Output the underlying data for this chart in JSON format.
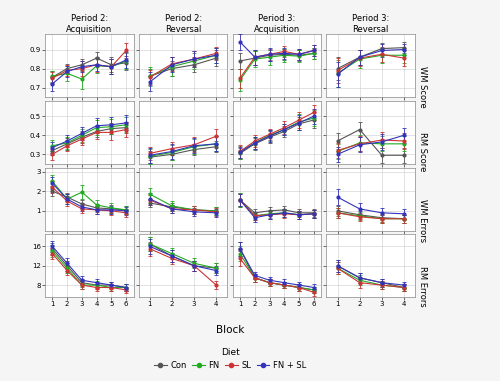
{
  "col_titles": [
    "Period 2:\nAcquisition",
    "Period 2:\nReversal",
    "Period 3:\nAcquisition",
    "Period 3:\nReversal"
  ],
  "row_titles": [
    "WM Score",
    "RM Score",
    "WM Errors",
    "RM Errors"
  ],
  "col_blocks": [
    6,
    4,
    6,
    4
  ],
  "colors": [
    "#555555",
    "#22aa22",
    "#cc3333",
    "#3333bb"
  ],
  "wm_score": {
    "p2acq": {
      "Con": {
        "y": [
          0.755,
          0.8,
          0.82,
          0.855,
          0.82,
          0.83
        ],
        "err": [
          0.03,
          0.025,
          0.03,
          0.03,
          0.04,
          0.035
        ]
      },
      "FN": {
        "y": [
          0.76,
          0.775,
          0.745,
          0.815,
          0.81,
          0.84
        ],
        "err": [
          0.03,
          0.04,
          0.05,
          0.04,
          0.04,
          0.04
        ]
      },
      "SL": {
        "y": [
          0.75,
          0.79,
          0.8,
          0.82,
          0.81,
          0.895
        ],
        "err": [
          0.03,
          0.03,
          0.04,
          0.04,
          0.04,
          0.04
        ]
      },
      "FN+SL": {
        "y": [
          0.72,
          0.785,
          0.81,
          0.82,
          0.81,
          0.845
        ],
        "err": [
          0.035,
          0.03,
          0.03,
          0.035,
          0.04,
          0.04
        ]
      }
    },
    "p2rev": {
      "Con": {
        "y": [
          0.76,
          0.8,
          0.82,
          0.855
        ],
        "err": [
          0.04,
          0.04,
          0.04,
          0.04
        ]
      },
      "FN": {
        "y": [
          0.76,
          0.81,
          0.84,
          0.87
        ],
        "err": [
          0.05,
          0.05,
          0.04,
          0.04
        ]
      },
      "SL": {
        "y": [
          0.755,
          0.825,
          0.85,
          0.88
        ],
        "err": [
          0.04,
          0.035,
          0.04,
          0.035
        ]
      },
      "FN+SL": {
        "y": [
          0.73,
          0.82,
          0.85,
          0.87
        ],
        "err": [
          0.05,
          0.04,
          0.04,
          0.04
        ]
      }
    },
    "p3acq": {
      "Con": {
        "y": [
          0.84,
          0.855,
          0.87,
          0.875,
          0.87,
          0.88
        ],
        "err": [
          0.04,
          0.035,
          0.03,
          0.03,
          0.03,
          0.03
        ]
      },
      "FN": {
        "y": [
          0.74,
          0.85,
          0.86,
          0.87,
          0.865,
          0.88
        ],
        "err": [
          0.06,
          0.04,
          0.04,
          0.035,
          0.03,
          0.03
        ]
      },
      "SL": {
        "y": [
          0.75,
          0.86,
          0.875,
          0.89,
          0.875,
          0.895
        ],
        "err": [
          0.05,
          0.04,
          0.03,
          0.03,
          0.03,
          0.03
        ]
      },
      "FN+SL": {
        "y": [
          0.94,
          0.86,
          0.875,
          0.88,
          0.875,
          0.895
        ],
        "err": [
          0.04,
          0.04,
          0.035,
          0.03,
          0.03,
          0.03
        ]
      }
    },
    "p3rev": {
      "Con": {
        "y": [
          0.8,
          0.86,
          0.905,
          0.91
        ],
        "err": [
          0.06,
          0.04,
          0.03,
          0.03
        ]
      },
      "FN": {
        "y": [
          0.775,
          0.85,
          0.87,
          0.87
        ],
        "err": [
          0.07,
          0.045,
          0.04,
          0.04
        ]
      },
      "SL": {
        "y": [
          0.79,
          0.855,
          0.875,
          0.855
        ],
        "err": [
          0.065,
          0.04,
          0.04,
          0.04
        ]
      },
      "FN+SL": {
        "y": [
          0.77,
          0.86,
          0.895,
          0.9
        ],
        "err": [
          0.065,
          0.04,
          0.035,
          0.03
        ]
      }
    }
  },
  "rm_score": {
    "p2acq": {
      "Con": {
        "y": [
          0.32,
          0.355,
          0.39,
          0.42,
          0.435,
          0.44
        ],
        "err": [
          0.025,
          0.03,
          0.03,
          0.03,
          0.03,
          0.03
        ]
      },
      "FN": {
        "y": [
          0.345,
          0.36,
          0.4,
          0.44,
          0.445,
          0.455
        ],
        "err": [
          0.03,
          0.03,
          0.035,
          0.04,
          0.04,
          0.04
        ]
      },
      "SL": {
        "y": [
          0.3,
          0.345,
          0.38,
          0.415,
          0.415,
          0.43
        ],
        "err": [
          0.03,
          0.03,
          0.03,
          0.035,
          0.04,
          0.04
        ]
      },
      "FN+SL": {
        "y": [
          0.335,
          0.37,
          0.41,
          0.45,
          0.455,
          0.465
        ],
        "err": [
          0.03,
          0.03,
          0.035,
          0.04,
          0.04,
          0.04
        ]
      }
    },
    "p2rev": {
      "Con": {
        "y": [
          0.285,
          0.3,
          0.325,
          0.34
        ],
        "err": [
          0.03,
          0.03,
          0.03,
          0.03
        ]
      },
      "FN": {
        "y": [
          0.29,
          0.31,
          0.34,
          0.355
        ],
        "err": [
          0.04,
          0.04,
          0.04,
          0.04
        ]
      },
      "SL": {
        "y": [
          0.305,
          0.33,
          0.35,
          0.395
        ],
        "err": [
          0.035,
          0.035,
          0.04,
          0.04
        ]
      },
      "FN+SL": {
        "y": [
          0.295,
          0.315,
          0.345,
          0.355
        ],
        "err": [
          0.04,
          0.04,
          0.04,
          0.04
        ]
      }
    },
    "p3acq": {
      "Con": {
        "y": [
          0.305,
          0.355,
          0.39,
          0.42,
          0.46,
          0.48
        ],
        "err": [
          0.03,
          0.03,
          0.03,
          0.03,
          0.035,
          0.04
        ]
      },
      "FN": {
        "y": [
          0.31,
          0.36,
          0.4,
          0.43,
          0.47,
          0.49
        ],
        "err": [
          0.035,
          0.03,
          0.03,
          0.03,
          0.04,
          0.04
        ]
      },
      "SL": {
        "y": [
          0.315,
          0.37,
          0.405,
          0.44,
          0.48,
          0.52
        ],
        "err": [
          0.035,
          0.03,
          0.03,
          0.035,
          0.04,
          0.04
        ]
      },
      "FN+SL": {
        "y": [
          0.31,
          0.36,
          0.395,
          0.43,
          0.465,
          0.5
        ],
        "err": [
          0.03,
          0.03,
          0.03,
          0.03,
          0.04,
          0.04
        ]
      }
    },
    "p3rev": {
      "Con": {
        "y": [
          0.37,
          0.43,
          0.295,
          0.295
        ],
        "err": [
          0.04,
          0.04,
          0.04,
          0.04
        ]
      },
      "FN": {
        "y": [
          0.315,
          0.36,
          0.355,
          0.355
        ],
        "err": [
          0.04,
          0.04,
          0.04,
          0.04
        ]
      },
      "SL": {
        "y": [
          0.32,
          0.355,
          0.375,
          0.37
        ],
        "err": [
          0.04,
          0.04,
          0.04,
          0.04
        ]
      },
      "FN+SL": {
        "y": [
          0.3,
          0.35,
          0.365,
          0.4
        ],
        "err": [
          0.04,
          0.04,
          0.04,
          0.04
        ]
      }
    }
  },
  "wm_errors": {
    "p2acq": {
      "Con": {
        "y": [
          2.0,
          1.7,
          1.35,
          1.15,
          1.1,
          1.05
        ],
        "err": [
          0.25,
          0.2,
          0.2,
          0.2,
          0.2,
          0.2
        ]
      },
      "FN": {
        "y": [
          2.5,
          1.6,
          1.95,
          1.3,
          1.15,
          1.05
        ],
        "err": [
          0.35,
          0.25,
          0.35,
          0.25,
          0.25,
          0.2
        ]
      },
      "SL": {
        "y": [
          2.2,
          1.5,
          1.1,
          1.05,
          1.0,
          0.9
        ],
        "err": [
          0.3,
          0.25,
          0.2,
          0.2,
          0.2,
          0.2
        ]
      },
      "FN+SL": {
        "y": [
          2.4,
          1.6,
          1.2,
          1.05,
          1.05,
          1.0
        ],
        "err": [
          0.3,
          0.25,
          0.2,
          0.2,
          0.2,
          0.2
        ]
      }
    },
    "p2rev": {
      "Con": {
        "y": [
          1.4,
          1.2,
          1.05,
          1.0
        ],
        "err": [
          0.2,
          0.2,
          0.2,
          0.2
        ]
      },
      "FN": {
        "y": [
          1.85,
          1.25,
          1.05,
          1.0
        ],
        "err": [
          0.3,
          0.25,
          0.2,
          0.2
        ]
      },
      "SL": {
        "y": [
          1.55,
          1.1,
          1.05,
          0.95
        ],
        "err": [
          0.25,
          0.2,
          0.2,
          0.2
        ]
      },
      "FN+SL": {
        "y": [
          1.6,
          1.1,
          0.95,
          0.9
        ],
        "err": [
          0.3,
          0.2,
          0.2,
          0.2
        ]
      }
    },
    "p3acq": {
      "Con": {
        "y": [
          1.55,
          0.9,
          1.0,
          1.05,
          0.9,
          0.9
        ],
        "err": [
          0.35,
          0.2,
          0.2,
          0.2,
          0.2,
          0.2
        ]
      },
      "FN": {
        "y": [
          1.55,
          0.75,
          0.85,
          0.9,
          0.8,
          0.85
        ],
        "err": [
          0.35,
          0.2,
          0.2,
          0.2,
          0.2,
          0.2
        ]
      },
      "SL": {
        "y": [
          1.55,
          0.75,
          0.8,
          0.85,
          0.8,
          0.85
        ],
        "err": [
          0.3,
          0.2,
          0.2,
          0.2,
          0.2,
          0.2
        ]
      },
      "FN+SL": {
        "y": [
          1.55,
          0.65,
          0.8,
          0.9,
          0.8,
          0.85
        ],
        "err": [
          0.3,
          0.2,
          0.2,
          0.2,
          0.2,
          0.2
        ]
      }
    },
    "p3rev": {
      "Con": {
        "y": [
          1.0,
          0.8,
          0.65,
          0.6
        ],
        "err": [
          0.25,
          0.2,
          0.2,
          0.2
        ]
      },
      "FN": {
        "y": [
          0.9,
          0.75,
          0.6,
          0.6
        ],
        "err": [
          0.25,
          0.2,
          0.2,
          0.2
        ]
      },
      "SL": {
        "y": [
          0.9,
          0.7,
          0.6,
          0.6
        ],
        "err": [
          0.25,
          0.2,
          0.2,
          0.2
        ]
      },
      "FN+SL": {
        "y": [
          1.7,
          1.1,
          0.9,
          0.85
        ],
        "err": [
          0.4,
          0.3,
          0.25,
          0.25
        ]
      }
    }
  },
  "rm_errors": {
    "p2acq": {
      "Con": {
        "y": [
          15.5,
          12.0,
          8.5,
          8.0,
          8.0,
          7.5
        ],
        "err": [
          1.2,
          1.0,
          0.8,
          0.7,
          0.7,
          0.7
        ]
      },
      "FN": {
        "y": [
          15.0,
          11.5,
          8.0,
          8.0,
          7.5,
          7.5
        ],
        "err": [
          1.2,
          1.0,
          0.8,
          0.8,
          0.7,
          0.7
        ]
      },
      "SL": {
        "y": [
          14.5,
          11.0,
          8.0,
          7.5,
          7.5,
          7.0
        ],
        "err": [
          1.2,
          1.0,
          0.8,
          0.7,
          0.7,
          0.7
        ]
      },
      "FN+SL": {
        "y": [
          16.0,
          12.5,
          9.0,
          8.5,
          8.0,
          7.5
        ],
        "err": [
          1.2,
          1.0,
          0.8,
          0.8,
          0.7,
          0.7
        ]
      }
    },
    "p2rev": {
      "Con": {
        "y": [
          16.5,
          14.0,
          12.0,
          11.5
        ],
        "err": [
          1.5,
          1.2,
          1.0,
          1.0
        ]
      },
      "FN": {
        "y": [
          16.5,
          14.5,
          12.5,
          11.5
        ],
        "err": [
          1.5,
          1.2,
          1.0,
          1.0
        ]
      },
      "SL": {
        "y": [
          15.5,
          13.5,
          12.0,
          8.0
        ],
        "err": [
          1.5,
          1.2,
          1.0,
          0.8
        ]
      },
      "FN+SL": {
        "y": [
          16.0,
          14.0,
          12.0,
          11.0
        ],
        "err": [
          1.5,
          1.2,
          1.0,
          1.0
        ]
      }
    },
    "p3acq": {
      "Con": {
        "y": [
          15.5,
          9.5,
          8.5,
          8.0,
          7.5,
          7.0
        ],
        "err": [
          1.5,
          0.8,
          0.7,
          0.7,
          0.7,
          0.7
        ]
      },
      "FN": {
        "y": [
          14.5,
          9.5,
          8.5,
          8.0,
          7.5,
          7.0
        ],
        "err": [
          1.5,
          0.8,
          0.7,
          0.7,
          0.7,
          0.7
        ]
      },
      "SL": {
        "y": [
          13.5,
          9.5,
          8.5,
          8.0,
          7.5,
          6.5
        ],
        "err": [
          1.5,
          0.8,
          0.7,
          0.7,
          0.7,
          0.7
        ]
      },
      "FN+SL": {
        "y": [
          15.5,
          10.0,
          9.0,
          8.5,
          8.0,
          7.5
        ],
        "err": [
          1.5,
          0.8,
          0.7,
          0.7,
          0.7,
          0.7
        ]
      }
    },
    "p3rev": {
      "Con": {
        "y": [
          12.0,
          9.5,
          8.5,
          7.5
        ],
        "err": [
          1.2,
          1.0,
          0.8,
          0.7
        ]
      },
      "FN": {
        "y": [
          11.5,
          9.0,
          8.0,
          7.5
        ],
        "err": [
          1.2,
          1.0,
          0.8,
          0.7
        ]
      },
      "SL": {
        "y": [
          11.5,
          8.5,
          8.0,
          7.5
        ],
        "err": [
          1.2,
          1.0,
          0.8,
          0.7
        ]
      },
      "FN+SL": {
        "y": [
          12.0,
          9.5,
          8.5,
          8.0
        ],
        "err": [
          1.2,
          1.0,
          0.8,
          0.7
        ]
      }
    }
  },
  "ylims": {
    "wm_score": [
      0.65,
      0.98
    ],
    "rm_score": [
      0.25,
      0.58
    ],
    "wm_errors": [
      0.0,
      3.2
    ],
    "rm_errors": [
      5.5,
      18.5
    ]
  },
  "yticks": {
    "wm_score": [
      0.7,
      0.8,
      0.9
    ],
    "rm_score": [
      0.3,
      0.4,
      0.5
    ],
    "wm_errors": [
      1,
      2,
      3
    ],
    "rm_errors": [
      8,
      12,
      16
    ]
  },
  "background_color": "#f5f5f5",
  "panel_color": "#ffffff"
}
